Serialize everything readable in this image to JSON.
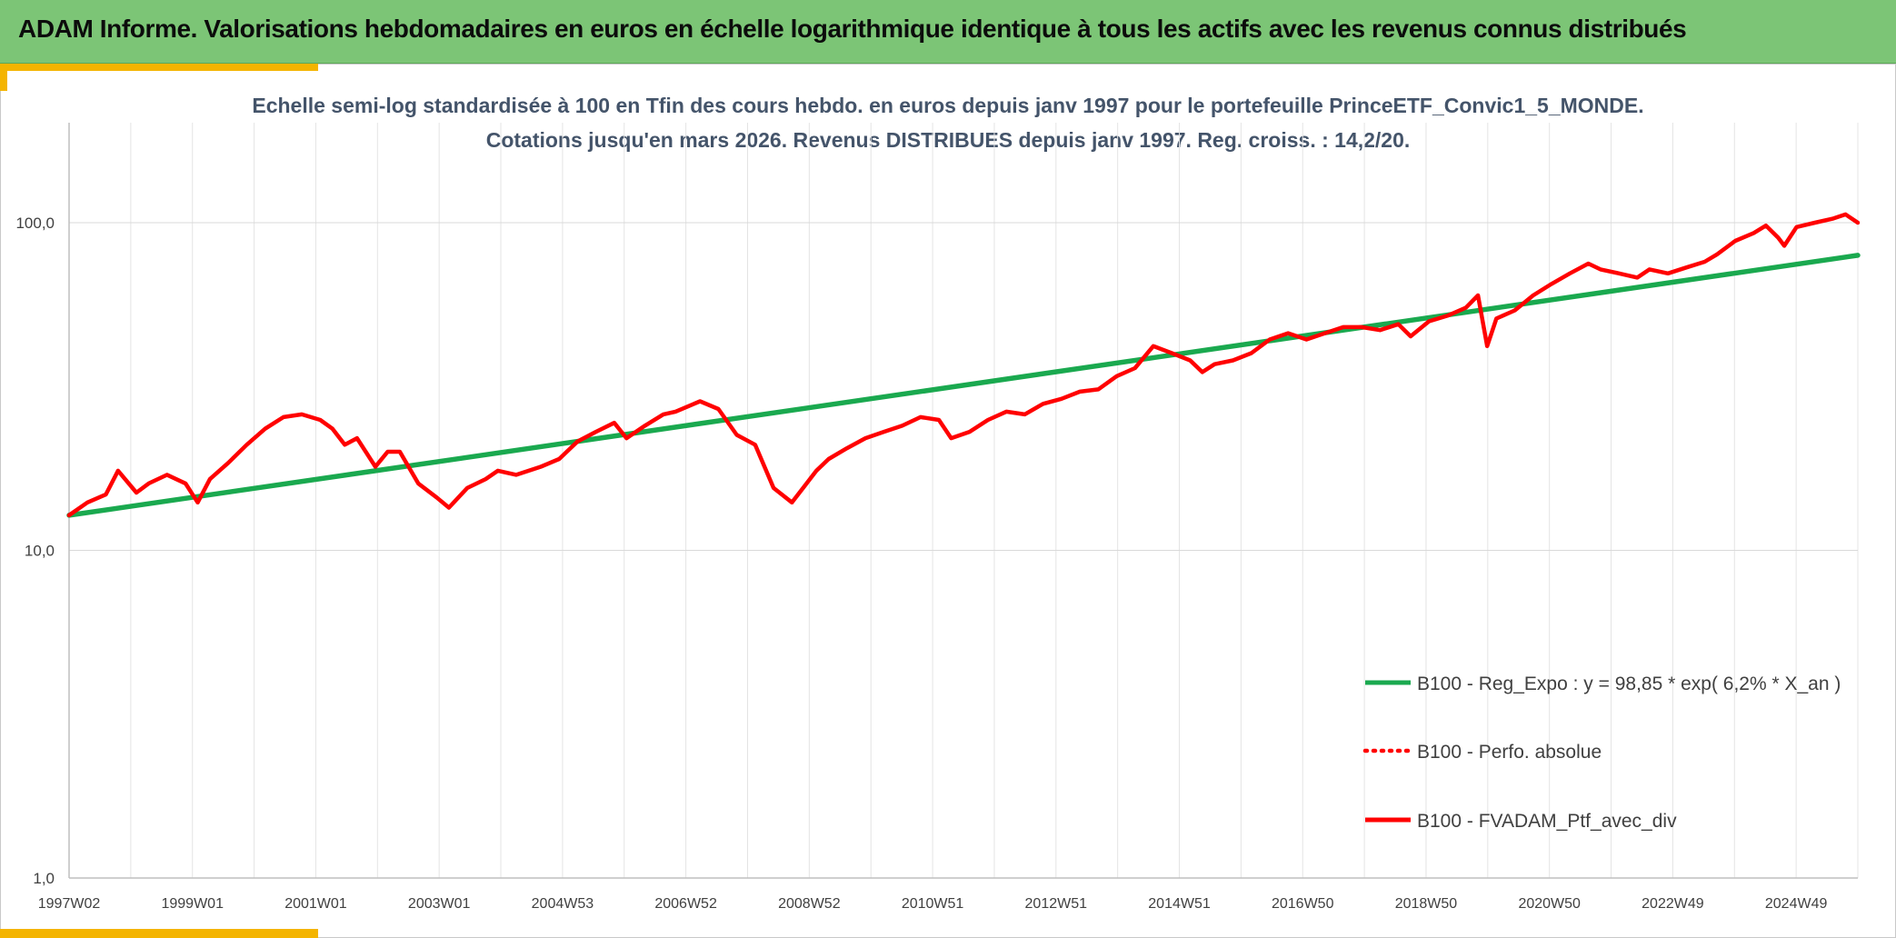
{
  "header": {
    "title": "ADAM Informe. Valorisations hebdomadaires en euros en échelle logarithmique identique à tous les actifs avec les revenus connus distribués"
  },
  "colors": {
    "banner": "#7cc576",
    "accent": "#f4b400",
    "regression": "#1aa94f",
    "series": "#ff0000",
    "subtitle": "#44546a"
  },
  "chart_data": {
    "type": "line",
    "title_line1": "Echelle semi-log standardisée à 100 en Tfin des cours hebdo. en euros depuis janv 1997 pour le portefeuille PrinceETF_Convic1_5_MONDE.",
    "title_line2": "Cotations jusqu'en mars 2026. Revenus DISTRIBUES depuis janv 1997. Reg. croiss. : 14,2/20.",
    "y_scale": "log",
    "ylim": [
      1,
      100
    ],
    "y_ticks": [
      {
        "value": 100,
        "label": "100,0"
      },
      {
        "value": 10,
        "label": "10,0"
      },
      {
        "value": 1,
        "label": "1,0"
      }
    ],
    "x_ticks": [
      "1997W02",
      "1999W01",
      "2001W01",
      "2003W01",
      "2004W53",
      "2006W52",
      "2008W52",
      "2010W51",
      "2012W51",
      "2014W51",
      "2016W50",
      "2018W50",
      "2020W50",
      "2022W49",
      "2024W49"
    ],
    "xlim": [
      1997.0,
      2026.2
    ],
    "grid": true,
    "legend_position": "bottom-right",
    "legend": [
      {
        "label": "B100 - Reg_Expo : y = 98,85 * exp( 6,2% *  X_an )",
        "style": "solid",
        "color": "#1aa94f"
      },
      {
        "label": "B100 - Perfo. absolue",
        "style": "dotted",
        "color": "#ff0000"
      },
      {
        "label": "B100 - FVADAM_Ptf_avec_div",
        "style": "solid",
        "color": "#ff0000"
      }
    ],
    "series": [
      {
        "name": "B100 - Reg_Expo : y = 98,85 * exp( 6,2% *  X_an )",
        "color": "#1aa94f",
        "x": [
          1997.0,
          2026.2
        ],
        "y": [
          12.8,
          79.5
        ]
      },
      {
        "name": "B100 - FVADAM_Ptf_avec_div",
        "color": "#ff0000",
        "x": [
          1997.0,
          1997.3,
          1997.6,
          1997.8,
          1998.1,
          1998.3,
          1998.6,
          1998.9,
          1999.1,
          1999.3,
          1999.6,
          1999.9,
          2000.2,
          2000.5,
          2000.8,
          2001.1,
          2001.3,
          2001.5,
          2001.7,
          2002.0,
          2002.2,
          2002.4,
          2002.7,
          2003.0,
          2003.2,
          2003.5,
          2003.8,
          2004.0,
          2004.3,
          2004.7,
          2005.0,
          2005.3,
          2005.6,
          2005.9,
          2006.1,
          2006.4,
          2006.7,
          2006.9,
          2007.3,
          2007.6,
          2007.9,
          2008.2,
          2008.5,
          2008.8,
          2009.2,
          2009.4,
          2009.7,
          2010.0,
          2010.3,
          2010.6,
          2010.9,
          2011.2,
          2011.4,
          2011.7,
          2012.0,
          2012.3,
          2012.6,
          2012.9,
          2013.2,
          2013.5,
          2013.8,
          2014.1,
          2014.4,
          2014.7,
          2015.0,
          2015.3,
          2015.5,
          2015.7,
          2016.0,
          2016.3,
          2016.6,
          2016.9,
          2017.2,
          2017.5,
          2017.8,
          2018.1,
          2018.4,
          2018.7,
          2018.9,
          2019.2,
          2019.5,
          2019.8,
          2020.0,
          2020.15,
          2020.3,
          2020.6,
          2020.9,
          2021.2,
          2021.5,
          2021.8,
          2022.0,
          2022.3,
          2022.6,
          2022.8,
          2023.1,
          2023.4,
          2023.7,
          2023.9,
          2024.2,
          2024.5,
          2024.7,
          2024.9,
          2025.0,
          2025.2,
          2025.5,
          2025.8,
          2026.0,
          2026.2
        ],
        "y": [
          12.8,
          14.0,
          14.8,
          17.5,
          15.0,
          16.0,
          17.0,
          16.0,
          14.0,
          16.5,
          18.5,
          21.0,
          23.5,
          25.5,
          26.0,
          25.0,
          23.5,
          21.0,
          22.0,
          18.0,
          20.0,
          20.0,
          16.0,
          14.5,
          13.5,
          15.5,
          16.5,
          17.5,
          17.0,
          18.0,
          19.0,
          21.5,
          23.0,
          24.5,
          22.0,
          24.0,
          26.0,
          26.5,
          28.5,
          27.0,
          22.5,
          21.0,
          15.5,
          14.0,
          17.5,
          19.0,
          20.5,
          22.0,
          23.0,
          24.0,
          25.5,
          25.0,
          22.0,
          23.0,
          25.0,
          26.5,
          26.0,
          28.0,
          29.0,
          30.5,
          31.0,
          34.0,
          36.0,
          42.0,
          40.0,
          38.0,
          35.0,
          37.0,
          38.0,
          40.0,
          44.0,
          46.0,
          44.0,
          46.0,
          48.0,
          48.0,
          47.0,
          49.0,
          45.0,
          50.0,
          52.0,
          55.0,
          60.0,
          42.0,
          51.0,
          54.0,
          60.0,
          65.0,
          70.0,
          75.0,
          72.0,
          70.0,
          68.0,
          72.0,
          70.0,
          73.0,
          76.0,
          80.0,
          88.0,
          93.0,
          98.0,
          90.0,
          85.0,
          97.0,
          100.0,
          103.0,
          106.0,
          100.0
        ]
      }
    ]
  }
}
